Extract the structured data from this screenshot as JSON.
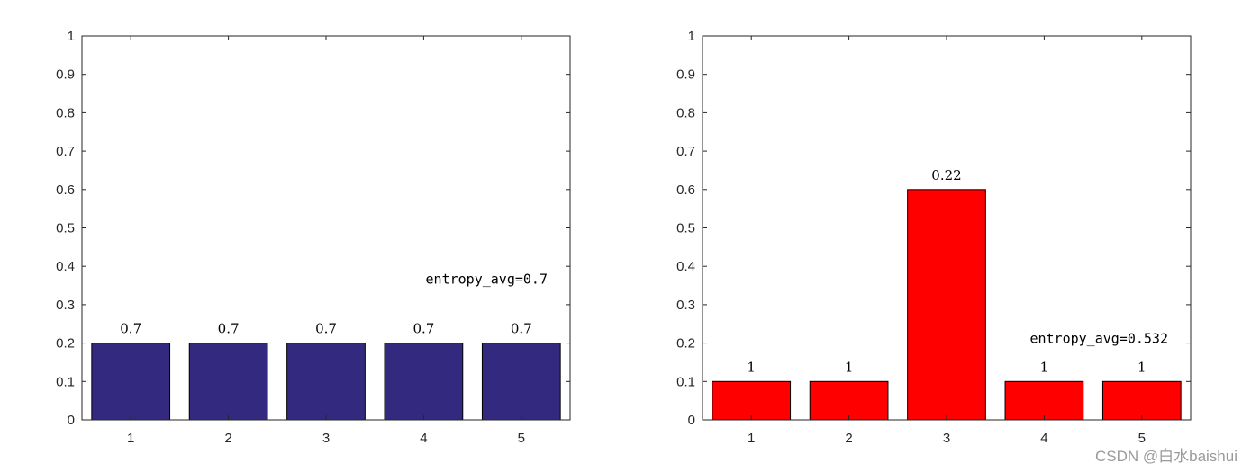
{
  "chart_data": [
    {
      "type": "bar",
      "categories": [
        "1",
        "2",
        "3",
        "4",
        "5"
      ],
      "values": [
        0.2,
        0.2,
        0.2,
        0.2,
        0.2
      ],
      "bar_labels": [
        "0.7",
        "0.7",
        "0.7",
        "0.7",
        "0.7"
      ],
      "annotation": "entropy_avg=0.7",
      "bar_color": "#33297f",
      "ylim": [
        0,
        1
      ],
      "yticks": [
        "0",
        "0.1",
        "0.2",
        "0.3",
        "0.4",
        "0.5",
        "0.6",
        "0.7",
        "0.8",
        "0.9",
        "1"
      ],
      "grid": false
    },
    {
      "type": "bar",
      "categories": [
        "1",
        "2",
        "3",
        "4",
        "5"
      ],
      "values": [
        0.1,
        0.1,
        0.6,
        0.1,
        0.1
      ],
      "bar_labels": [
        "1",
        "1",
        "0.22",
        "1",
        "1"
      ],
      "annotation": "entropy_avg=0.532",
      "bar_color": "#ff0000",
      "ylim": [
        0,
        1
      ],
      "yticks": [
        "0",
        "0.1",
        "0.2",
        "0.3",
        "0.4",
        "0.5",
        "0.6",
        "0.7",
        "0.8",
        "0.9",
        "1"
      ],
      "grid": false
    }
  ],
  "watermark": "CSDN @白水baishui"
}
